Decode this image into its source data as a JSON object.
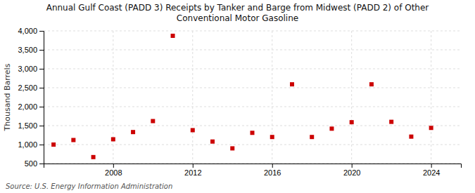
{
  "chart_data": {
    "type": "scatter",
    "title": "Annual Gulf Coast (PADD 3) Receipts by Tanker and Barge from Midwest (PADD 2) of Other\nConventional Motor Gasoline",
    "ylabel": "Thousand Barrels",
    "annotations": [
      "Source: U.S. Energy Information Administration"
    ],
    "x": [
      2005,
      2006,
      2007,
      2008,
      2009,
      2010,
      2011,
      2012,
      2013,
      2014,
      2015,
      2016,
      2017,
      2018,
      2019,
      2020,
      2021,
      2022,
      2023,
      2024
    ],
    "values": [
      1000,
      1120,
      670,
      1140,
      1330,
      1620,
      3870,
      1380,
      1080,
      900,
      1310,
      1200,
      2590,
      1200,
      1420,
      1590,
      2590,
      1600,
      1210,
      1440
    ],
    "color": "#cc0000",
    "marker": "square",
    "xlim": [
      2004.5,
      2025.5
    ],
    "xticks": [
      2008,
      2012,
      2016,
      2020,
      2024
    ],
    "ylim": [
      500,
      4000
    ],
    "yticks": [
      500,
      {
        "value": 1000,
        "label": "1,000"
      },
      {
        "value": 1500,
        "label": "1,500"
      },
      {
        "value": 2000,
        "label": "2,000"
      },
      {
        "value": 2500,
        "label": "2,500"
      },
      {
        "value": 3000,
        "label": "3,000"
      },
      {
        "value": 3500,
        "label": "3,500"
      },
      {
        "value": 4000,
        "label": "4,000"
      }
    ],
    "grid": true
  }
}
